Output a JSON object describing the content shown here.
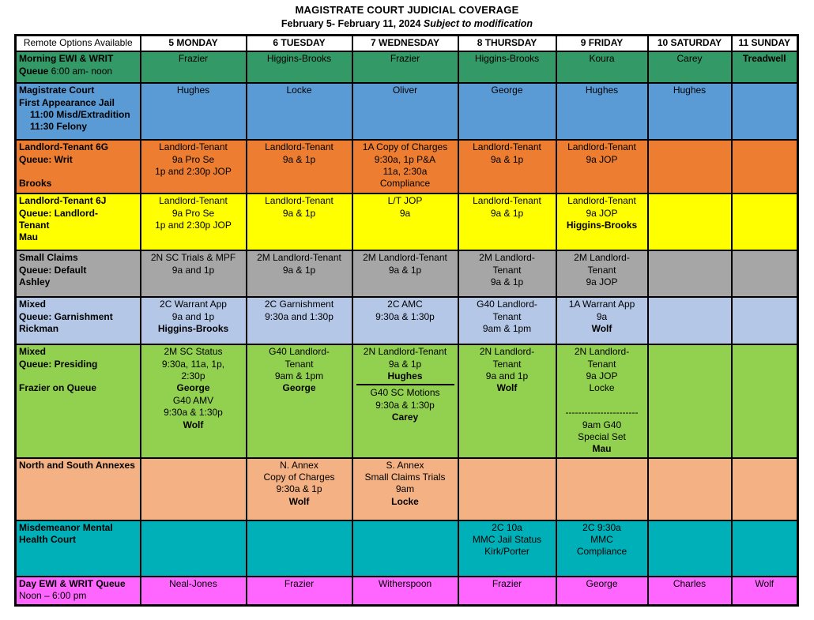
{
  "title": "MAGISTRATE COURT JUDICIAL COVERAGE",
  "subtitle": {
    "date_range": "February 5- February 11, 2024 ",
    "note": "Subject to modification"
  },
  "table": {
    "columns": [
      "Remote Options Available",
      "5 MONDAY",
      "6 TUESDAY",
      "7 WEDNESDAY",
      "8 THURSDAY",
      "9 FRIDAY",
      "10 SATURDAY",
      "11 SUNDAY"
    ],
    "rows": [
      {
        "name": "morning-ewi-writ-queue",
        "color": "#339966",
        "label": [
          {
            "t": "Morning EWI & WRIT",
            "b": true
          },
          {
            "segs": [
              {
                "t": "Queue",
                "b": true
              },
              {
                "t": "   6:00 am- noon",
                "b": false
              }
            ]
          }
        ],
        "cells": [
          [
            {
              "t": "Frazier"
            }
          ],
          [
            {
              "t": "Higgins-Brooks"
            }
          ],
          [
            {
              "t": "Frazier"
            }
          ],
          [
            {
              "t": "Higgins-Brooks"
            }
          ],
          [
            {
              "t": "Koura"
            }
          ],
          [
            {
              "t": "Carey"
            }
          ],
          [
            {
              "t": "Treadwell",
              "b": true
            }
          ]
        ]
      },
      {
        "name": "magistrate-court-first-appearance",
        "color": "#5B9BD5",
        "label": [
          {
            "t": "Magistrate Court",
            "b": true
          },
          {
            "t": "First Appearance  Jail",
            "b": true
          },
          {
            "t": "11:00 Misd/Extradition",
            "b": true,
            "i": true
          },
          {
            "t": "11:30 Felony",
            "b": true,
            "i": true
          }
        ],
        "cells": [
          [
            {
              "t": "Hughes"
            }
          ],
          [
            {
              "t": "Locke"
            }
          ],
          [
            {
              "t": "Oliver"
            }
          ],
          [
            {
              "t": "George"
            }
          ],
          [
            {
              "t": "Hughes"
            }
          ],
          [
            {
              "t": "Hughes"
            }
          ],
          []
        ]
      },
      {
        "name": "landlord-tenant-6g-writ",
        "color": "#ED7D31",
        "label": [
          {
            "t": "Landlord-Tenant  6G",
            "b": true
          },
          {
            "t": "Queue: Writ",
            "b": true
          },
          {
            "t": ""
          },
          {
            "t": "Brooks",
            "b": true
          }
        ],
        "cells": [
          [
            {
              "t": "Landlord-Tenant"
            },
            {
              "t": "9a Pro Se"
            },
            {
              "t": "1p and 2:30p JOP"
            }
          ],
          [
            {
              "t": "Landlord-Tenant"
            },
            {
              "t": "9a & 1p"
            }
          ],
          [
            {
              "t": "1A  Copy of Charges"
            },
            {
              "t": "9:30a, 1p P&A"
            },
            {
              "t": "11a, 2:30a"
            },
            {
              "t": "Compliance"
            }
          ],
          [
            {
              "t": "Landlord-Tenant"
            },
            {
              "t": "9a & 1p"
            }
          ],
          [
            {
              "t": "Landlord-Tenant"
            },
            {
              "t": "9a JOP"
            }
          ],
          [],
          []
        ]
      },
      {
        "name": "landlord-tenant-6j",
        "color": "#FFFF00",
        "label": [
          {
            "t": "Landlord-Tenant  6J",
            "b": true
          },
          {
            "t": "Queue: Landlord-",
            "b": true
          },
          {
            "t": "Tenant",
            "b": true
          },
          {
            "t": "Mau",
            "b": true
          }
        ],
        "cells": [
          [
            {
              "t": "Landlord-Tenant"
            },
            {
              "t": "9a Pro Se"
            },
            {
              "t": "1p and 2:30p JOP"
            }
          ],
          [
            {
              "t": "Landlord-Tenant"
            },
            {
              "t": "9a & 1p"
            }
          ],
          [
            {
              "t": "L/T JOP"
            },
            {
              "t": "9a"
            }
          ],
          [
            {
              "t": "Landlord-Tenant"
            },
            {
              "t": "9a & 1p"
            }
          ],
          [
            {
              "t": "Landlord-Tenant"
            },
            {
              "t": "9a JOP"
            },
            {
              "t": "Higgins-Brooks",
              "b": true
            }
          ],
          [],
          []
        ]
      },
      {
        "name": "small-claims-default",
        "color": "#A6A6A6",
        "label": [
          {
            "t": "Small Claims",
            "b": true
          },
          {
            "t": "Queue: Default",
            "b": true
          },
          {
            "t": "Ashley",
            "b": true
          }
        ],
        "cells": [
          [
            {
              "t": "2N SC Trials & MPF"
            },
            {
              "t": "9a and 1p"
            }
          ],
          [
            {
              "t": "2M Landlord-Tenant"
            },
            {
              "t": "9a & 1p"
            }
          ],
          [
            {
              "t": "2M Landlord-Tenant"
            },
            {
              "t": "9a & 1p"
            }
          ],
          [
            {
              "t": "2M Landlord-"
            },
            {
              "t": "Tenant"
            },
            {
              "t": "9a & 1p"
            }
          ],
          [
            {
              "t": "2M Landlord-"
            },
            {
              "t": "Tenant"
            },
            {
              "t": "9a JOP"
            }
          ],
          [],
          []
        ]
      },
      {
        "name": "mixed-garnishment",
        "color": "#B4C7E7",
        "label": [
          {
            "t": "Mixed",
            "b": true
          },
          {
            "t": "Queue: Garnishment",
            "b": true
          },
          {
            "t": "Rickman",
            "b": true
          }
        ],
        "cells": [
          [
            {
              "t": "2C Warrant App"
            },
            {
              "t": "9a and 1p"
            },
            {
              "t": "Higgins-Brooks",
              "b": true
            }
          ],
          [
            {
              "t": "2C Garnishment"
            },
            {
              "t": "9:30a and 1:30p"
            }
          ],
          [
            {
              "t": "2C AMC"
            },
            {
              "t": "9:30a & 1:30p"
            }
          ],
          [
            {
              "t": "G40 Landlord-"
            },
            {
              "t": "Tenant"
            },
            {
              "t": "9am & 1pm"
            }
          ],
          [
            {
              "t": "1A Warrant App"
            },
            {
              "t": "9a"
            },
            {
              "t": "Wolf",
              "b": true
            }
          ],
          [],
          []
        ]
      },
      {
        "name": "mixed-presiding",
        "color": "#92D050",
        "label": [
          {
            "t": "Mixed",
            "b": true
          },
          {
            "t": "Queue: Presiding",
            "b": true
          },
          {
            "t": ""
          },
          {
            "t": "Frazier on Queue",
            "b": true
          }
        ],
        "cells": [
          [
            {
              "t": "2M SC Status"
            },
            {
              "t": "9:30a, 11a, 1p,"
            },
            {
              "t": "2:30p"
            },
            {
              "t": "George",
              "b": true
            },
            {
              "t": "G40 AMV"
            },
            {
              "t": "9:30a & 1:30p"
            },
            {
              "t": "Wolf",
              "b": true
            }
          ],
          [
            {
              "t": "G40 Landlord-"
            },
            {
              "t": "Tenant"
            },
            {
              "t": "9am & 1pm"
            },
            {
              "t": "George",
              "b": true
            }
          ],
          [
            {
              "t": "2N Landlord-Tenant"
            },
            {
              "t": "9a & 1p"
            },
            {
              "t": "Hughes",
              "b": true
            },
            {
              "hr": true
            },
            {
              "t": "G40 SC Motions"
            },
            {
              "t": "9:30a & 1:30p"
            },
            {
              "t": "Carey",
              "b": true
            }
          ],
          [
            {
              "t": "2N Landlord-"
            },
            {
              "t": "Tenant"
            },
            {
              "t": "9a and 1p"
            },
            {
              "t": "Wolf",
              "b": true
            }
          ],
          [
            {
              "t": "2N Landlord-"
            },
            {
              "t": "Tenant"
            },
            {
              "t": "9a JOP"
            },
            {
              "t": "Locke"
            },
            {
              "t": ""
            },
            {
              "t": "-----------------------"
            },
            {
              "t": "9am G40"
            },
            {
              "t": "Special Set"
            },
            {
              "t": "Mau",
              "b": true
            }
          ],
          [],
          []
        ]
      },
      {
        "name": "north-south-annexes",
        "color": "#F4B183",
        "label": [
          {
            "t": "North and South Annexes",
            "b": true
          }
        ],
        "cells": [
          [],
          [
            {
              "t": "N. Annex"
            },
            {
              "t": "Copy of Charges"
            },
            {
              "t": "9:30a & 1p"
            },
            {
              "t": "Wolf",
              "b": true
            }
          ],
          [
            {
              "t": "S. Annex"
            },
            {
              "t": "Small Claims Trials"
            },
            {
              "t": "9am"
            },
            {
              "t": "Locke",
              "b": true
            }
          ],
          [],
          [],
          [],
          []
        ]
      },
      {
        "name": "misdemeanor-mental-health-court",
        "color": "#00B0B8",
        "label": [
          {
            "t": "Misdemeanor Mental",
            "b": true
          },
          {
            "t": "Health Court",
            "b": true
          }
        ],
        "cells": [
          [],
          [],
          [],
          [
            {
              "t": "2C 10a"
            },
            {
              "t": "MMC Jail Status"
            },
            {
              "t": "Kirk/Porter"
            }
          ],
          [
            {
              "t": "2C 9:30a"
            },
            {
              "t": "MMC"
            },
            {
              "t": "Compliance"
            }
          ],
          [],
          []
        ]
      },
      {
        "name": "day-ewi-writ-queue",
        "color": "#FF66FF",
        "label": [
          {
            "t": "Day EWI & WRIT Queue",
            "b": true
          },
          {
            "t": "Noon – 6:00 pm"
          }
        ],
        "cells": [
          [
            {
              "t": "Neal-Jones"
            }
          ],
          [
            {
              "t": "Frazier"
            }
          ],
          [
            {
              "t": "Witherspoon"
            }
          ],
          [
            {
              "t": "Frazier"
            }
          ],
          [
            {
              "t": "George"
            }
          ],
          [
            {
              "t": "Charles"
            }
          ],
          [
            {
              "t": "Wolf"
            }
          ]
        ]
      }
    ]
  },
  "colors": {
    "header_bg": "#FFFFFF",
    "border": "#000000",
    "morning_queue_green": "#339966",
    "magistrate_blue": "#5B9BD5",
    "landlord_orange": "#ED7D31",
    "landlord_yellow": "#FFFF00",
    "small_claims_gray": "#A6A6A6",
    "garnishment_light_blue": "#B4C7E7",
    "presiding_green": "#92D050",
    "annex_peach": "#F4B183",
    "mmhc_teal": "#00B0B8",
    "day_queue_magenta": "#FF66FF"
  }
}
